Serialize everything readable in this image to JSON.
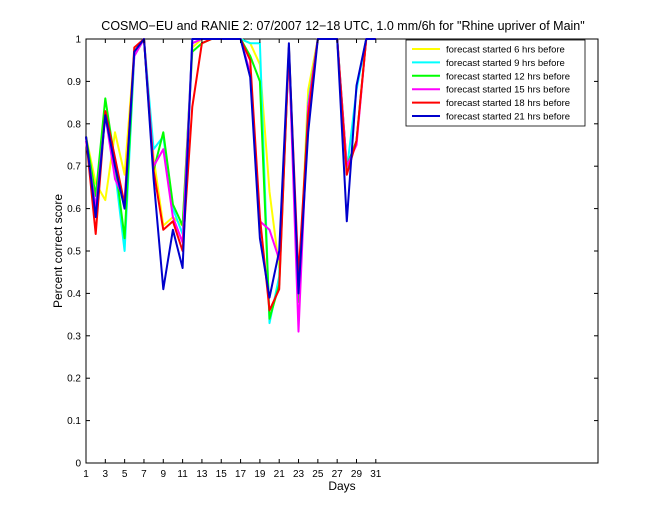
{
  "chart_data": {
    "type": "line",
    "title": "COSMO−EU and RANIE 2: 07/2007 12−18 UTC, 1.0 mm/6h for \"Rhine upriver of Main\"",
    "xlabel": "Days",
    "ylabel": "Percent correct score",
    "xlim": [
      1,
      54
    ],
    "ylim": [
      0,
      1
    ],
    "x_ticks": [
      1,
      3,
      5,
      7,
      9,
      11,
      13,
      15,
      17,
      19,
      21,
      23,
      25,
      27,
      29,
      31
    ],
    "y_ticks": [
      0,
      0.1,
      0.2,
      0.3,
      0.4,
      0.5,
      0.6,
      0.7,
      0.8,
      0.9,
      1
    ],
    "y_tick_labels": [
      "0",
      "0.1",
      "0.2",
      "0.3",
      "0.4",
      "0.5",
      "0.6",
      "0.7",
      "0.8",
      "0.9",
      "1"
    ],
    "grid": false,
    "legend_position": "top-right",
    "x": [
      1,
      2,
      3,
      4,
      5,
      6,
      7,
      8,
      9,
      10,
      11,
      12,
      13,
      14,
      15,
      16,
      17,
      18,
      19,
      20,
      21,
      22,
      23,
      24,
      25,
      26,
      27,
      28,
      29,
      30,
      31
    ],
    "series": [
      {
        "name": "forecast started 6 hrs before",
        "color": "#ffff00",
        "values": [
          0.77,
          0.66,
          0.62,
          0.78,
          0.68,
          0.97,
          1.0,
          0.72,
          0.56,
          0.58,
          0.56,
          0.98,
          1.0,
          1.0,
          1.0,
          1.0,
          1.0,
          0.99,
          0.94,
          0.64,
          0.46,
          0.97,
          0.38,
          0.88,
          1.0,
          1.0,
          1.0,
          0.7,
          0.76,
          1.0,
          1.0
        ]
      },
      {
        "name": "forecast started 9 hrs before",
        "color": "#00ffff",
        "values": [
          0.77,
          0.6,
          0.83,
          0.69,
          0.5,
          0.96,
          1.0,
          0.74,
          0.77,
          0.6,
          0.54,
          0.99,
          1.0,
          1.0,
          1.0,
          1.0,
          1.0,
          0.99,
          0.99,
          0.33,
          0.44,
          0.97,
          0.38,
          0.85,
          1.0,
          1.0,
          1.0,
          0.69,
          0.88,
          1.0,
          1.0
        ]
      },
      {
        "name": "forecast started 12 hrs before",
        "color": "#00ff00",
        "values": [
          0.77,
          0.63,
          0.86,
          0.71,
          0.53,
          0.97,
          1.0,
          0.69,
          0.78,
          0.61,
          0.56,
          0.97,
          0.99,
          1.0,
          1.0,
          1.0,
          1.0,
          0.96,
          0.9,
          0.34,
          0.42,
          0.98,
          0.38,
          0.84,
          1.0,
          1.0,
          1.0,
          0.7,
          0.76,
          1.0,
          1.0
        ]
      },
      {
        "name": "forecast started 15 hrs before",
        "color": "#ff00ff",
        "values": [
          0.76,
          0.6,
          0.82,
          0.67,
          0.62,
          0.96,
          1.0,
          0.7,
          0.74,
          0.58,
          0.52,
          0.99,
          1.0,
          1.0,
          1.0,
          1.0,
          1.0,
          0.92,
          0.57,
          0.55,
          0.48,
          0.97,
          0.31,
          0.84,
          1.0,
          1.0,
          1.0,
          0.7,
          0.75,
          1.0,
          1.0
        ]
      },
      {
        "name": "forecast started 18 hrs before",
        "color": "#ff0000",
        "values": [
          0.77,
          0.54,
          0.83,
          0.72,
          0.61,
          0.98,
          1.0,
          0.69,
          0.55,
          0.57,
          0.5,
          0.84,
          0.99,
          1.0,
          1.0,
          1.0,
          1.0,
          0.95,
          0.58,
          0.36,
          0.41,
          0.98,
          0.44,
          0.82,
          1.0,
          1.0,
          1.0,
          0.68,
          0.76,
          1.0,
          1.0
        ]
      },
      {
        "name": "forecast started 21 hrs before",
        "color": "#0000cc",
        "values": [
          0.77,
          0.58,
          0.82,
          0.7,
          0.6,
          0.97,
          1.0,
          0.67,
          0.41,
          0.55,
          0.46,
          1.0,
          1.0,
          1.0,
          1.0,
          1.0,
          1.0,
          0.91,
          0.53,
          0.39,
          0.5,
          0.99,
          0.4,
          0.78,
          1.0,
          1.0,
          1.0,
          0.57,
          0.89,
          1.0,
          1.0
        ]
      }
    ]
  }
}
